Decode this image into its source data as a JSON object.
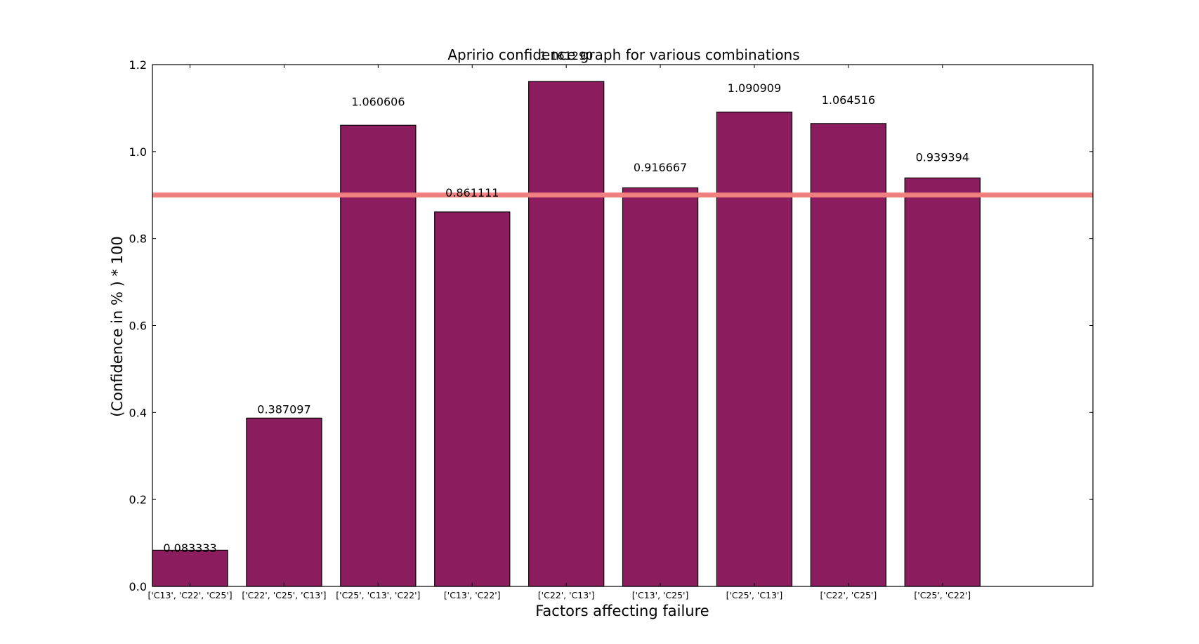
{
  "chart_data": {
    "type": "bar",
    "title": "Apririo confidence graph for various combinations",
    "xlabel": "Factors affecting failure",
    "ylabel": "(Confidence in % ) * 100",
    "categories": [
      "['C13', 'C22', 'C25']",
      "['C22', 'C25', 'C13']",
      "['C25', 'C13', 'C22']",
      "['C13', 'C22']",
      "['C22', 'C13']",
      "['C13', 'C25']",
      "['C25', 'C13']",
      "['C22', 'C25']",
      "['C25', 'C22']"
    ],
    "values": [
      0.083333,
      0.387097,
      1.060606,
      0.861111,
      1.16129,
      0.916667,
      1.090909,
      1.064516,
      0.939394
    ],
    "data_labels": [
      "0.083333",
      "0.387097",
      "1.060606",
      "0.861111",
      "1.161290",
      "0.916667",
      "1.090909",
      "1.064516",
      "0.939394"
    ],
    "ylim": [
      0,
      1.2
    ],
    "yticks": [
      0.0,
      0.2,
      0.4,
      0.6,
      0.8,
      1.0,
      1.2
    ],
    "ytick_labels": [
      "0.0",
      "0.2",
      "0.4",
      "0.6",
      "0.8",
      "1.0",
      "1.2"
    ],
    "threshold": 0.9,
    "grid": false,
    "colors": {
      "bar": "#8b1c5e",
      "bar_edge": "#000000",
      "threshold_line": "#f08080"
    }
  }
}
